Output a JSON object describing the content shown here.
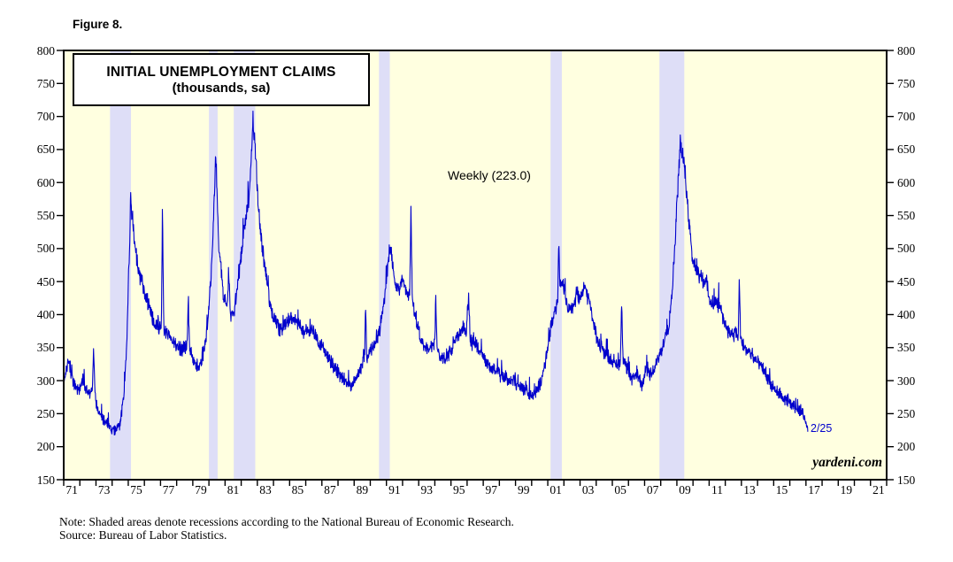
{
  "figure_label": "Figure 8.",
  "title": {
    "line1": "INITIAL UNEMPLOYMENT CLAIMS",
    "line2": "(thousands, sa)"
  },
  "annotations": {
    "weekly_label": "Weekly (223.0)",
    "latest_label": "2/25",
    "watermark": "yardeni.com"
  },
  "note": {
    "line1": "Note: Shaded areas denote recessions according to the National Bureau of Economic Research.",
    "line2": "Source: Bureau of Labor Statistics."
  },
  "colors": {
    "line": "#0000CC",
    "recession_band": "#DEDEF7",
    "plot_background": "#FFFFE0",
    "axis": "#000000"
  },
  "chart_data": {
    "type": "line",
    "title": "INITIAL UNEMPLOYMENT CLAIMS (thousands, sa)",
    "series_name": "Initial unemployment claims, weekly, seasonally adjusted (thousands)",
    "frequency": "weekly",
    "latest_value": 223.0,
    "latest_date_label": "2/25",
    "x_range": [
      1971,
      2022
    ],
    "y_range": [
      150,
      800
    ],
    "y_tick_step": 50,
    "y_ticks": [
      150,
      200,
      250,
      300,
      350,
      400,
      450,
      500,
      550,
      600,
      650,
      700,
      750,
      800
    ],
    "x_tick_labels": [
      "71",
      "73",
      "75",
      "77",
      "79",
      "81",
      "83",
      "85",
      "87",
      "89",
      "91",
      "93",
      "95",
      "97",
      "99",
      "01",
      "03",
      "05",
      "07",
      "09",
      "11",
      "13",
      "15",
      "17",
      "19",
      "21"
    ],
    "x_tick_label_years": [
      1971,
      1973,
      1975,
      1977,
      1979,
      1981,
      1983,
      1985,
      1987,
      1989,
      1991,
      1993,
      1995,
      1997,
      1999,
      2001,
      2003,
      2005,
      2007,
      2009,
      2011,
      2013,
      2015,
      2017,
      2019,
      2021
    ],
    "grid": false,
    "legend": "none",
    "recessions": [
      [
        1973.87,
        1975.17
      ],
      [
        1980.0,
        1980.54
      ],
      [
        1981.54,
        1982.87
      ],
      [
        1990.54,
        1991.21
      ],
      [
        2001.17,
        2001.87
      ],
      [
        2007.92,
        2009.46
      ]
    ],
    "anchors": [
      [
        1971.0,
        295
      ],
      [
        1971.3,
        330
      ],
      [
        1971.6,
        298
      ],
      [
        1971.9,
        285
      ],
      [
        1972.2,
        302
      ],
      [
        1972.5,
        282
      ],
      [
        1972.78,
        285
      ],
      [
        1972.85,
        352
      ],
      [
        1972.95,
        272
      ],
      [
        1973.2,
        252
      ],
      [
        1973.5,
        240
      ],
      [
        1973.9,
        228
      ],
      [
        1974.2,
        222
      ],
      [
        1974.5,
        235
      ],
      [
        1974.75,
        285
      ],
      [
        1974.9,
        350
      ],
      [
        1975.15,
        575
      ],
      [
        1975.4,
        505
      ],
      [
        1975.7,
        460
      ],
      [
        1976.0,
        435
      ],
      [
        1976.3,
        410
      ],
      [
        1976.6,
        390
      ],
      [
        1976.9,
        380
      ],
      [
        1977.05,
        385
      ],
      [
        1977.12,
        565
      ],
      [
        1977.2,
        380
      ],
      [
        1977.5,
        370
      ],
      [
        1977.9,
        355
      ],
      [
        1978.3,
        345
      ],
      [
        1978.65,
        355
      ],
      [
        1978.72,
        420
      ],
      [
        1978.8,
        345
      ],
      [
        1979.1,
        330
      ],
      [
        1979.4,
        318
      ],
      [
        1979.7,
        345
      ],
      [
        1979.95,
        395
      ],
      [
        1980.15,
        460
      ],
      [
        1980.42,
        640
      ],
      [
        1980.6,
        510
      ],
      [
        1980.9,
        430
      ],
      [
        1981.15,
        410
      ],
      [
        1981.22,
        462
      ],
      [
        1981.35,
        400
      ],
      [
        1981.6,
        410
      ],
      [
        1981.9,
        470
      ],
      [
        1982.2,
        530
      ],
      [
        1982.5,
        585
      ],
      [
        1982.73,
        693
      ],
      [
        1982.9,
        640
      ],
      [
        1983.1,
        545
      ],
      [
        1983.4,
        482
      ],
      [
        1983.7,
        430
      ],
      [
        1984.0,
        395
      ],
      [
        1984.4,
        375
      ],
      [
        1984.8,
        385
      ],
      [
        1985.1,
        398
      ],
      [
        1985.5,
        388
      ],
      [
        1985.9,
        372
      ],
      [
        1986.3,
        378
      ],
      [
        1986.7,
        360
      ],
      [
        1987.0,
        355
      ],
      [
        1987.4,
        335
      ],
      [
        1987.8,
        320
      ],
      [
        1988.2,
        305
      ],
      [
        1988.8,
        292
      ],
      [
        1989.2,
        308
      ],
      [
        1989.5,
        325
      ],
      [
        1989.65,
        330
      ],
      [
        1989.7,
        415
      ],
      [
        1989.78,
        330
      ],
      [
        1990.0,
        345
      ],
      [
        1990.3,
        355
      ],
      [
        1990.6,
        378
      ],
      [
        1990.9,
        430
      ],
      [
        1991.1,
        480
      ],
      [
        1991.22,
        503
      ],
      [
        1991.5,
        455
      ],
      [
        1991.8,
        438
      ],
      [
        1992.0,
        452
      ],
      [
        1992.3,
        428
      ],
      [
        1992.45,
        435
      ],
      [
        1992.52,
        565
      ],
      [
        1992.6,
        420
      ],
      [
        1992.9,
        385
      ],
      [
        1993.2,
        355
      ],
      [
        1993.5,
        345
      ],
      [
        1994.0,
        355
      ],
      [
        1994.05,
        430
      ],
      [
        1994.15,
        345
      ],
      [
        1994.5,
        330
      ],
      [
        1994.9,
        340
      ],
      [
        1995.3,
        365
      ],
      [
        1995.7,
        380
      ],
      [
        1995.95,
        370
      ],
      [
        1996.1,
        428
      ],
      [
        1996.2,
        360
      ],
      [
        1996.5,
        355
      ],
      [
        1996.9,
        340
      ],
      [
        1997.3,
        325
      ],
      [
        1997.7,
        315
      ],
      [
        1998.1,
        308
      ],
      [
        1998.5,
        302
      ],
      [
        1998.9,
        298
      ],
      [
        1999.3,
        290
      ],
      [
        1999.7,
        285
      ],
      [
        2000.1,
        275
      ],
      [
        2000.4,
        288
      ],
      [
        2000.7,
        310
      ],
      [
        2000.95,
        340
      ],
      [
        2001.2,
        380
      ],
      [
        2001.45,
        408
      ],
      [
        2001.62,
        420
      ],
      [
        2001.68,
        517
      ],
      [
        2001.75,
        450
      ],
      [
        2001.95,
        445
      ],
      [
        2002.2,
        418
      ],
      [
        2002.5,
        405
      ],
      [
        2002.8,
        430
      ],
      [
        2003.05,
        425
      ],
      [
        2003.3,
        442
      ],
      [
        2003.6,
        415
      ],
      [
        2003.9,
        375
      ],
      [
        2004.2,
        352
      ],
      [
        2004.6,
        342
      ],
      [
        2005.0,
        330
      ],
      [
        2005.35,
        325
      ],
      [
        2005.5,
        330
      ],
      [
        2005.57,
        425
      ],
      [
        2005.67,
        335
      ],
      [
        2005.9,
        318
      ],
      [
        2006.2,
        302
      ],
      [
        2006.5,
        312
      ],
      [
        2006.85,
        295
      ],
      [
        2007.1,
        318
      ],
      [
        2007.4,
        308
      ],
      [
        2007.7,
        322
      ],
      [
        2007.95,
        340
      ],
      [
        2008.2,
        360
      ],
      [
        2008.5,
        385
      ],
      [
        2008.75,
        450
      ],
      [
        2008.95,
        540
      ],
      [
        2009.2,
        660
      ],
      [
        2009.45,
        625
      ],
      [
        2009.7,
        555
      ],
      [
        2009.95,
        490
      ],
      [
        2010.2,
        468
      ],
      [
        2010.5,
        458
      ],
      [
        2010.8,
        448
      ],
      [
        2011.1,
        415
      ],
      [
        2011.4,
        422
      ],
      [
        2011.7,
        408
      ],
      [
        2012.0,
        385
      ],
      [
        2012.3,
        372
      ],
      [
        2012.6,
        370
      ],
      [
        2012.8,
        368
      ],
      [
        2012.87,
        445
      ],
      [
        2012.95,
        362
      ],
      [
        2013.2,
        348
      ],
      [
        2013.5,
        344
      ],
      [
        2013.8,
        332
      ],
      [
        2014.1,
        325
      ],
      [
        2014.4,
        315
      ],
      [
        2014.7,
        298
      ],
      [
        2015.0,
        288
      ],
      [
        2015.3,
        282
      ],
      [
        2015.6,
        272
      ],
      [
        2015.9,
        268
      ],
      [
        2016.2,
        262
      ],
      [
        2016.5,
        258
      ],
      [
        2016.8,
        248
      ],
      [
        2017.0,
        238
      ],
      [
        2017.13,
        223
      ]
    ]
  }
}
